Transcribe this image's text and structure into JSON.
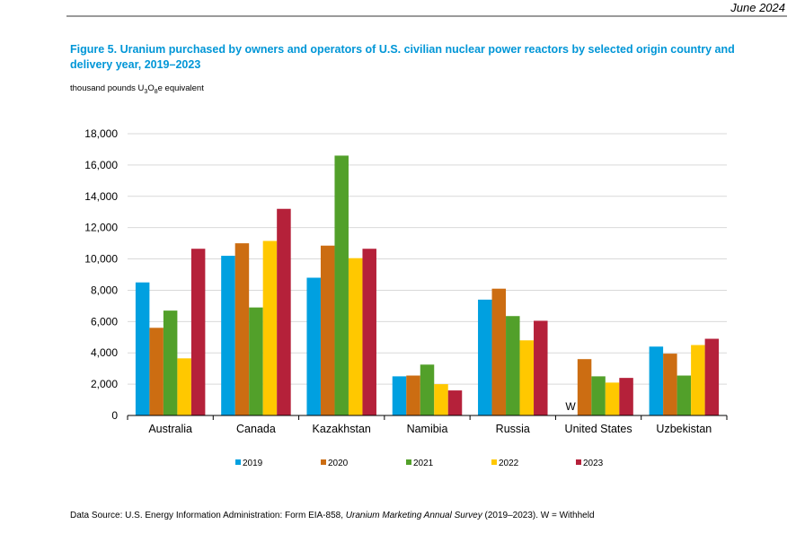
{
  "header": {
    "date": "June 2024"
  },
  "figure": {
    "title": "Figure 5. Uranium purchased by owners and operators of U.S. civilian nuclear power reactors by selected origin country and delivery year, 2019–2023",
    "units_prefix": "thousand pounds U",
    "units_sub1": "3",
    "units_mid": "O",
    "units_sub2": "8",
    "units_suffix": "e equivalent"
  },
  "footer": {
    "source_prefix": "Data Source: U.S. Energy Information Administration: Form EIA-858, ",
    "source_italic": "Uranium Marketing Annual Survey",
    "source_suffix": " (2019–2023). W = Withheld"
  },
  "chart_data": {
    "type": "bar",
    "title": "Figure 5. Uranium purchased by owners and operators of U.S. civilian nuclear power reactors by selected origin country and delivery year, 2019–2023",
    "ylabel": "thousand pounds U3O8e equivalent",
    "xlabel": "",
    "ylim": [
      0,
      18000
    ],
    "yticks": [
      0,
      2000,
      4000,
      6000,
      8000,
      10000,
      12000,
      14000,
      16000,
      18000
    ],
    "ytick_labels": [
      "0",
      "2,000",
      "4,000",
      "6,000",
      "8,000",
      "10,000",
      "12,000",
      "14,000",
      "16,000",
      "18,000"
    ],
    "grid": true,
    "legend_position": "bottom",
    "categories": [
      "Australia",
      "Canada",
      "Kazakhstan",
      "Namibia",
      "Russia",
      "United States",
      "Uzbekistan"
    ],
    "series": [
      {
        "name": "2019",
        "color": "#00a0e0",
        "values": [
          8500,
          10200,
          8800,
          2500,
          7400,
          null,
          4400
        ]
      },
      {
        "name": "2020",
        "color": "#cc6d12",
        "values": [
          5600,
          11000,
          10850,
          2550,
          8100,
          3600,
          3950
        ]
      },
      {
        "name": "2021",
        "color": "#52a02a",
        "values": [
          6700,
          6900,
          16600,
          3250,
          6350,
          2500,
          2550
        ]
      },
      {
        "name": "2022",
        "color": "#ffc800",
        "values": [
          3650,
          11150,
          10050,
          2000,
          4800,
          2100,
          4500
        ]
      },
      {
        "name": "2023",
        "color": "#b5213a",
        "values": [
          10650,
          13200,
          10650,
          1600,
          6050,
          2400,
          4900
        ]
      }
    ],
    "annotations": [
      {
        "category": "United States",
        "series": "2019",
        "text": "W"
      }
    ]
  }
}
